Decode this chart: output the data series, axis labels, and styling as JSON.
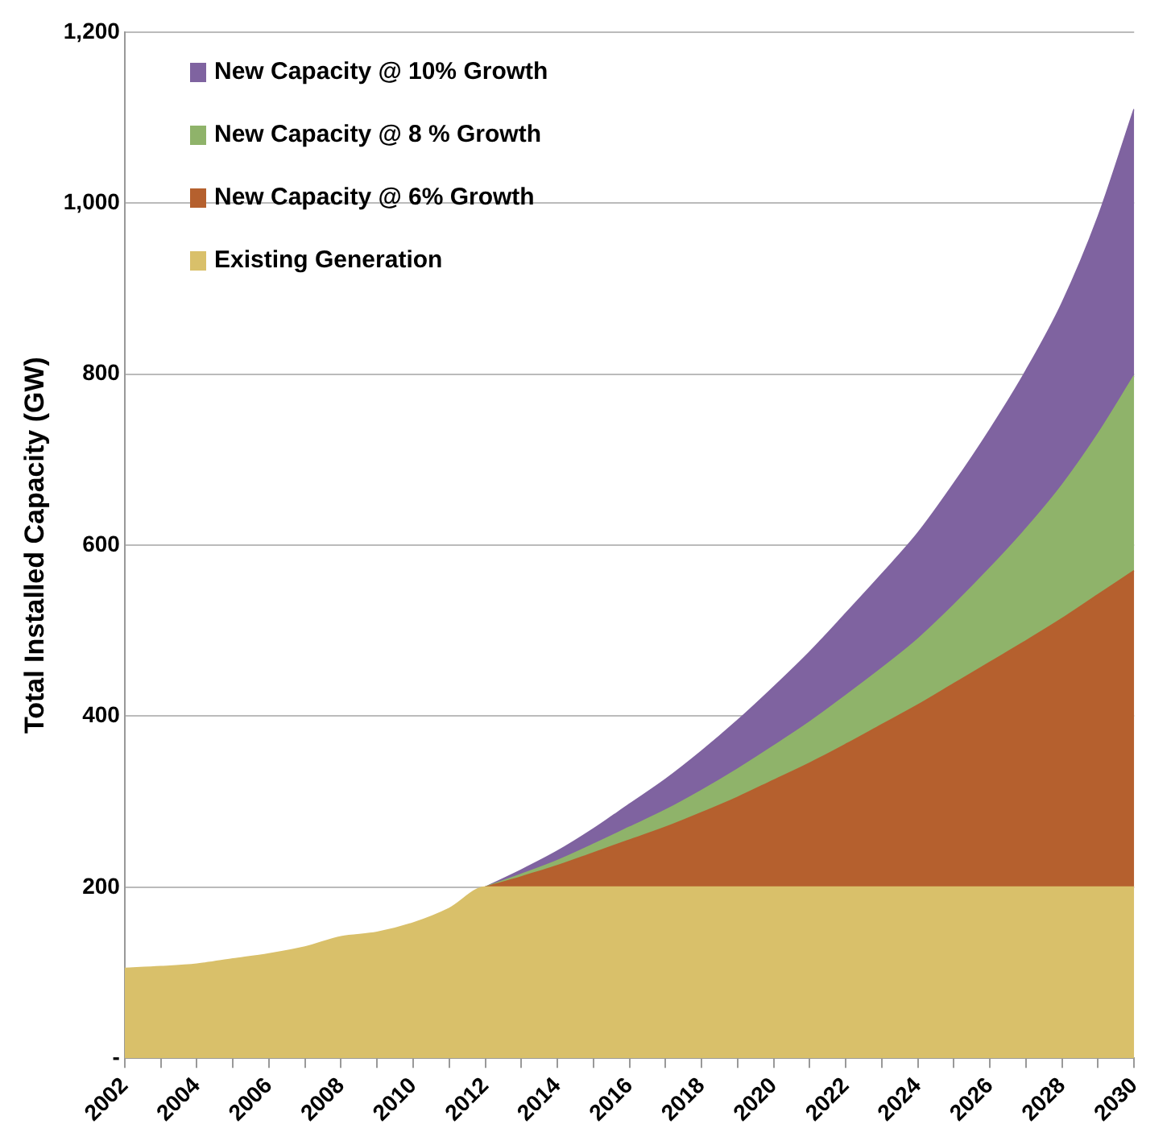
{
  "chart_data": {
    "type": "area",
    "stacked": true,
    "ylabel": "Total Installed Capacity (GW)",
    "x": [
      2002,
      2003,
      2004,
      2005,
      2006,
      2007,
      2008,
      2009,
      2010,
      2011,
      2012,
      2013,
      2014,
      2015,
      2016,
      2017,
      2018,
      2019,
      2020,
      2021,
      2022,
      2023,
      2024,
      2025,
      2026,
      2027,
      2028,
      2029,
      2030
    ],
    "series": [
      {
        "name": "Existing Generation",
        "color": "#d9c06a",
        "values": [
          105,
          107,
          110,
          116,
          122,
          130,
          142,
          147,
          158,
          175,
          200,
          200,
          200,
          200,
          200,
          200,
          200,
          200,
          200,
          200,
          200,
          200,
          200,
          200,
          200,
          200,
          200,
          200,
          200
        ]
      },
      {
        "name": "New Capacity @ 6% Growth",
        "color": "#b5602e",
        "values": [
          null,
          null,
          null,
          null,
          null,
          null,
          null,
          null,
          null,
          null,
          0,
          12,
          25,
          40,
          55,
          70,
          87,
          105,
          125,
          145,
          167,
          190,
          213,
          238,
          263,
          288,
          314,
          342,
          370
        ]
      },
      {
        "name": "New Capacity @ 8 % Growth",
        "color": "#8fb36a",
        "values": [
          null,
          null,
          null,
          null,
          null,
          null,
          null,
          null,
          null,
          null,
          0,
          3,
          6,
          10,
          15,
          20,
          26,
          33,
          40,
          48,
          57,
          66,
          77,
          92,
          110,
          131,
          156,
          188,
          228
        ]
      },
      {
        "name": "New Capacity @ 10% Growth",
        "color": "#7f63a0",
        "values": [
          null,
          null,
          null,
          null,
          null,
          null,
          null,
          null,
          null,
          null,
          0,
          5,
          11,
          18,
          27,
          36,
          46,
          57,
          69,
          82,
          96,
          110,
          124,
          142,
          162,
          185,
          213,
          254,
          312
        ]
      }
    ],
    "xlim": [
      2002,
      2030
    ],
    "xticks": [
      2002,
      {
        "value": 2003,
        "label": null
      },
      2004,
      {
        "value": 2005,
        "label": null
      },
      2006,
      {
        "value": 2007,
        "label": null
      },
      2008,
      {
        "value": 2009,
        "label": null
      },
      2010,
      {
        "value": 2011,
        "label": null
      },
      2012,
      {
        "value": 2013,
        "label": null
      },
      2014,
      {
        "value": 2015,
        "label": null
      },
      2016,
      {
        "value": 2017,
        "label": null
      },
      2018,
      {
        "value": 2019,
        "label": null
      },
      2020,
      {
        "value": 2021,
        "label": null
      },
      2022,
      {
        "value": 2023,
        "label": null
      },
      2024,
      {
        "value": 2025,
        "label": null
      },
      2026,
      {
        "value": 2027,
        "label": null
      },
      2028,
      {
        "value": 2029,
        "label": null
      },
      2030
    ],
    "ylim": [
      0,
      1200
    ],
    "yticks": [
      {
        "value": 0,
        "label": "-"
      },
      200,
      400,
      600,
      800,
      {
        "value": 1000,
        "label": "1,000"
      },
      {
        "value": 1200,
        "label": "1,200"
      }
    ],
    "grid": "y",
    "legend": "top left"
  }
}
